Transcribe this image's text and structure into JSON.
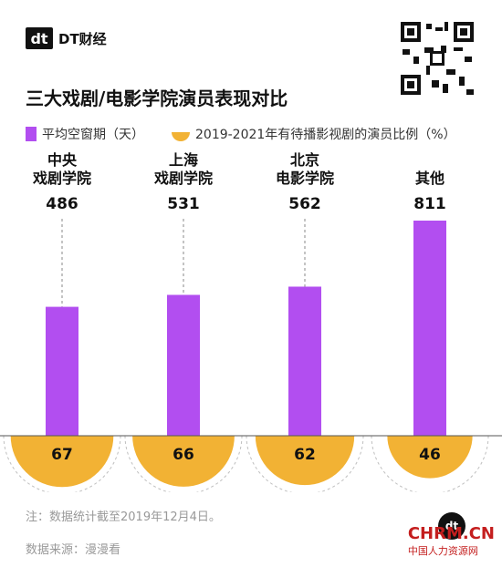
{
  "brand": {
    "mark": "dt",
    "name": "DT财经"
  },
  "title": "三大戏剧/电影学院演员表现对比",
  "legend": {
    "bar_label": "平均空窗期（天）",
    "half_label": "2019-2021年有待播影视剧的演员比例（%）"
  },
  "colors": {
    "bar": "#b24ef0",
    "half": "#f2b234",
    "dash": "#8a8a8a"
  },
  "chart_data": {
    "type": "bar",
    "categories": [
      [
        "中央",
        "戏剧学院"
      ],
      [
        "上海",
        "戏剧学院"
      ],
      [
        "北京",
        "电影学院"
      ],
      [
        "其他"
      ]
    ],
    "series": [
      {
        "name": "平均空窗期（天）",
        "values": [
          486,
          531,
          562,
          811
        ]
      },
      {
        "name": "2019-2021年有待播影视剧的演员比例（%）",
        "values": [
          67,
          66,
          62,
          46
        ]
      }
    ],
    "ylim": [
      0,
      811
    ]
  },
  "notes": {
    "note": "注：数据统计截至2019年12月4日。",
    "source": "数据来源：漫漫看"
  },
  "watermark": {
    "main": "CHRM.CN",
    "sub": "中国人力资源网"
  }
}
